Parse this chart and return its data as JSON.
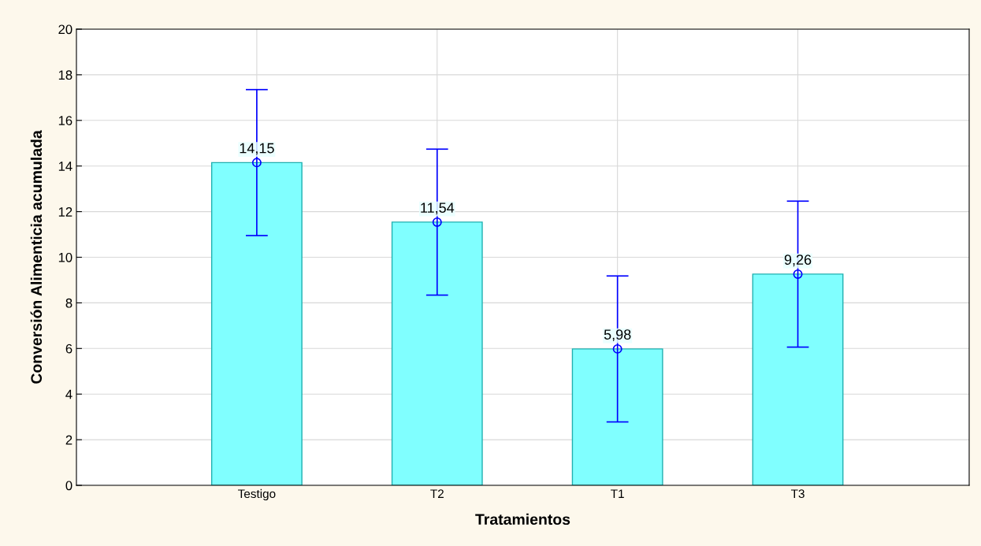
{
  "chart_data": {
    "type": "bar",
    "xlabel": "Tratamientos",
    "ylabel": "Conversión Alimenticia acumulada",
    "categories": [
      "Testigo",
      "T2",
      "T1",
      "T3"
    ],
    "series": [
      {
        "color": "#80ffff",
        "values": [
          14.15,
          11.54,
          5.98,
          9.26
        ],
        "value_labels": [
          "14,15",
          "11,54",
          "5,98",
          "9,26"
        ]
      },
      {
        "type": "scatter",
        "color": "#0000ff",
        "x": [
          "Testigo",
          "T2",
          "T1",
          "T3"
        ],
        "values": [
          14.15,
          11.54,
          5.98,
          9.26
        ],
        "errors": [
          3.2,
          3.2,
          3.2,
          3.2
        ],
        "marker": "circle"
      }
    ],
    "ylim": [
      0,
      20
    ],
    "yticks": [
      0,
      2,
      4,
      6,
      8,
      10,
      12,
      14,
      16,
      18,
      20
    ],
    "grid": true
  }
}
